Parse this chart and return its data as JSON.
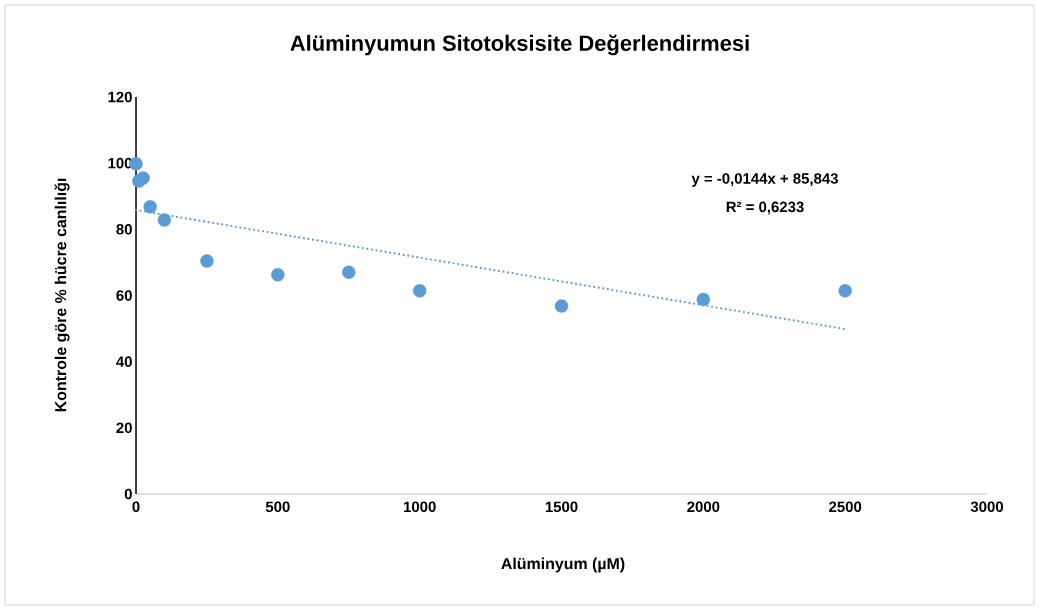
{
  "chart_data": {
    "type": "scatter",
    "title": "Alüminyumun Sitotoksisite Değerlendirmesi",
    "xlabel": "Alüminyum (µM)",
    "ylabel": "Kontrole göre % hücre canlılığı",
    "x": [
      0,
      10,
      25,
      50,
      100,
      250,
      500,
      750,
      1000,
      1500,
      2000,
      2500
    ],
    "series": [
      {
        "color": "#5b9bd5",
        "marker": "circle",
        "values": [
          99.8,
          94.6,
          95.5,
          86.8,
          82.8,
          70.4,
          66.3,
          67.0,
          61.4,
          56.8,
          58.8,
          61.4
        ]
      },
      {
        "type": "line",
        "color": "#5b9bd5",
        "marker": "none",
        "line_style": "dotted",
        "x": [
          0,
          2500
        ],
        "values": [
          85.843,
          49.843
        ]
      }
    ],
    "annotations": [
      "y = -0,0144x + 85,843",
      "R² = 0,6233"
    ],
    "xlim": [
      0,
      3000
    ],
    "xticks": [
      0,
      500,
      1000,
      1500,
      2000,
      2500,
      3000
    ],
    "ylim": [
      0,
      120
    ],
    "yticks": [
      0,
      20,
      40,
      60,
      80,
      100,
      120
    ]
  }
}
